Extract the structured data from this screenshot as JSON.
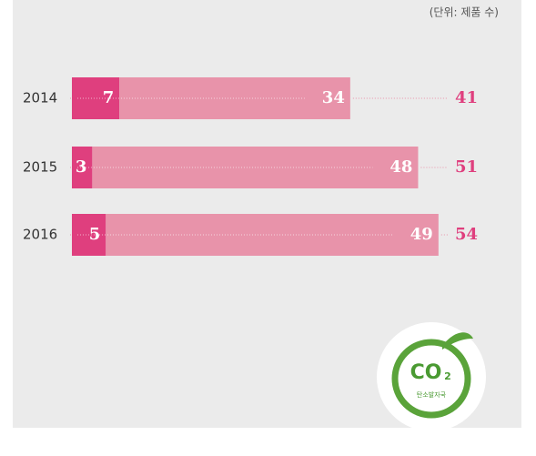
{
  "chart_data": {
    "type": "stacked-bar-horizontal",
    "unit_note": "(단위: 제품 수)",
    "categories": [
      "2014",
      "2015",
      "2016"
    ],
    "series": [
      {
        "color": "#df3f7e",
        "values": [
          7,
          3,
          5
        ]
      },
      {
        "color": "#e893aa",
        "values": [
          34,
          48,
          49
        ]
      }
    ],
    "totals": [
      41,
      51,
      54
    ],
    "total_color": "#df3f7e",
    "logo": {
      "text": "CO",
      "sub": "2",
      "caption": "탄소발자국"
    }
  }
}
